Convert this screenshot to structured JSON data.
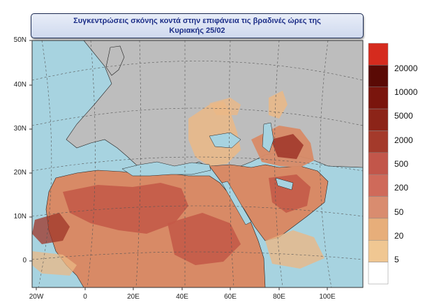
{
  "title": {
    "line1": "Συγκεντρώσεις σκόνης κοντά στην επιφάνεια τις βραδινές ώρες της",
    "line2": "Κυριακής 25/02"
  },
  "lat_labels": [
    "50N",
    "40N",
    "30N",
    "20N",
    "10N",
    "0"
  ],
  "lon_labels": [
    "20W",
    "0",
    "20E",
    "40E",
    "60E",
    "80E",
    "100E"
  ],
  "legend": {
    "labels": [
      "20000",
      "10000",
      "5000",
      "2000",
      "500",
      "200",
      "50",
      "20",
      "5"
    ],
    "colors": [
      "#d52b1e",
      "#5a0a05",
      "#7a150d",
      "#8c2418",
      "#a43a2b",
      "#c2564a",
      "#cf6a5a",
      "#d98c6f",
      "#e7ae7a",
      "#f0c792",
      "#ffffff"
    ]
  },
  "colors": {
    "ocean": "#a7d3e0",
    "land": "#bdbdbd",
    "dust_light": "#ebb886",
    "dust_medium": "#d88a66",
    "dust_heavy": "#c45a48",
    "dust_peak": "#9f3428"
  }
}
